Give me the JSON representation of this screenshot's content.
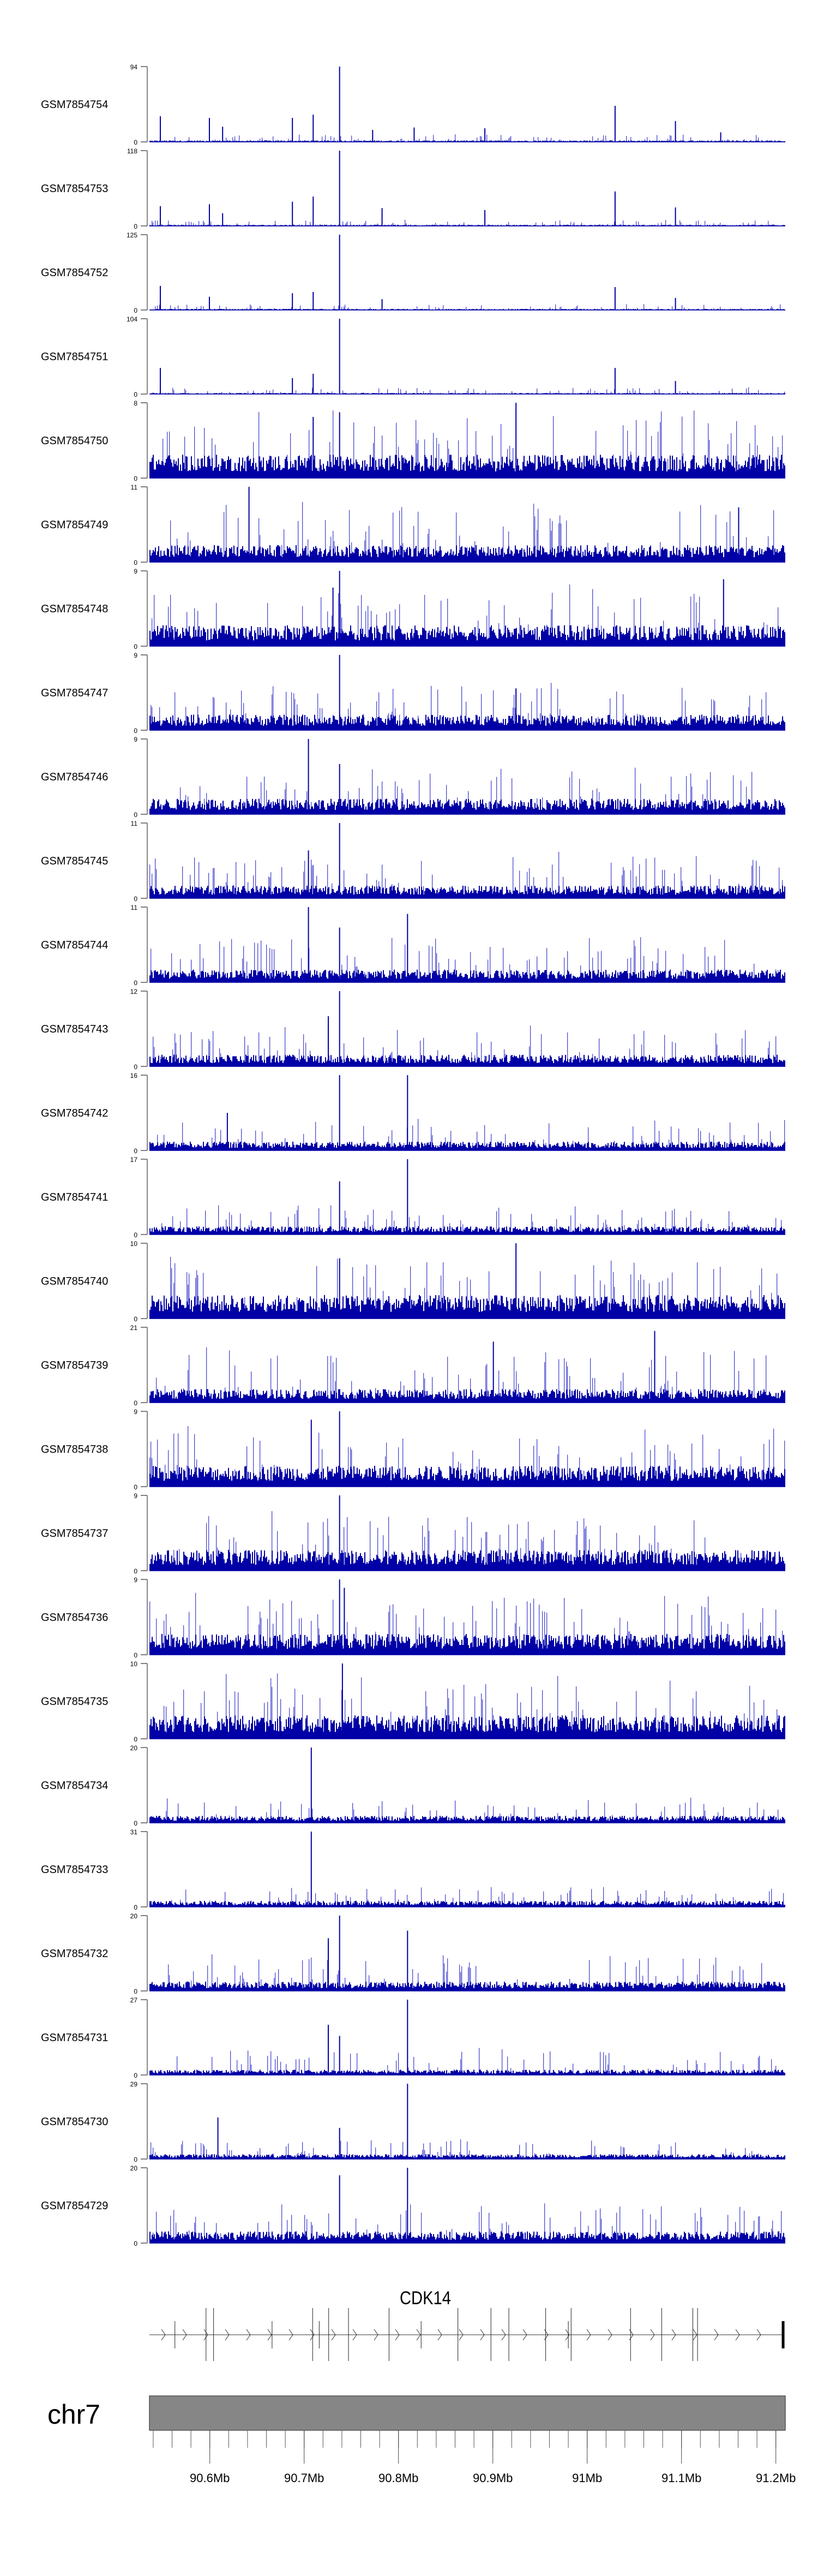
{
  "chart_data": {
    "type": "bar",
    "title": "",
    "xlim_mb": [
      90.536,
      91.21
    ],
    "bar_color": "#0000a6",
    "x_axis": {
      "chromosome": "chr7",
      "tick_labels": [
        "90.6Mb",
        "90.7Mb",
        "90.8Mb",
        "90.9Mb",
        "91Mb",
        "91.1Mb",
        "91.2Mb"
      ],
      "tick_values_mb": [
        90.6,
        90.7,
        90.8,
        90.9,
        91.0,
        91.1,
        91.2
      ],
      "minor_tick_step_mb": 0.02
    },
    "gene": {
      "name": "CDK14",
      "strand": "+",
      "exons_mb": [
        {
          "pos": 90.563,
          "tall": false
        },
        {
          "pos": 90.596,
          "tall": true
        },
        {
          "pos": 90.604,
          "tall": true
        },
        {
          "pos": 90.666,
          "tall": false
        },
        {
          "pos": 90.709,
          "tall": true
        },
        {
          "pos": 90.716,
          "tall": false
        },
        {
          "pos": 90.726,
          "tall": true
        },
        {
          "pos": 90.747,
          "tall": true
        },
        {
          "pos": 90.79,
          "tall": true
        },
        {
          "pos": 90.824,
          "tall": false
        },
        {
          "pos": 90.863,
          "tall": true
        },
        {
          "pos": 90.898,
          "tall": true
        },
        {
          "pos": 90.917,
          "tall": true
        },
        {
          "pos": 90.956,
          "tall": true
        },
        {
          "pos": 90.98,
          "tall": false
        },
        {
          "pos": 90.983,
          "tall": true
        },
        {
          "pos": 91.046,
          "tall": true
        },
        {
          "pos": 91.079,
          "tall": true
        },
        {
          "pos": 91.112,
          "tall": true
        },
        {
          "pos": 91.117,
          "tall": true
        }
      ],
      "end_mb": 91.208
    },
    "tracks": [
      {
        "name": "GSM7854754",
        "ymin": "0",
        "ymax": 94,
        "baseline": 1.5,
        "spike": 8,
        "peaks": [
          [
            90.737,
            94
          ],
          [
            91.029,
            45
          ],
          [
            90.709,
            34
          ],
          [
            90.547,
            32
          ],
          [
            90.687,
            30
          ],
          [
            90.599,
            30
          ],
          [
            91.093,
            26
          ],
          [
            90.613,
            19
          ],
          [
            90.816,
            18
          ],
          [
            90.891,
            17
          ],
          [
            91.141,
            12
          ],
          [
            90.772,
            15
          ]
        ]
      },
      {
        "name": "GSM7854753",
        "ymin": "0",
        "ymax": 118,
        "baseline": 1.5,
        "spike": 8,
        "peaks": [
          [
            90.737,
            118
          ],
          [
            91.029,
            54
          ],
          [
            90.709,
            46
          ],
          [
            90.687,
            38
          ],
          [
            90.599,
            34
          ],
          [
            90.547,
            31
          ],
          [
            91.093,
            29
          ],
          [
            90.782,
            28
          ],
          [
            90.891,
            25
          ],
          [
            90.613,
            20
          ]
        ]
      },
      {
        "name": "GSM7854752",
        "ymin": "0",
        "ymax": 125,
        "baseline": 1.5,
        "spike": 8,
        "peaks": [
          [
            90.737,
            125
          ],
          [
            90.547,
            40
          ],
          [
            91.029,
            38
          ],
          [
            90.709,
            30
          ],
          [
            90.687,
            28
          ],
          [
            90.599,
            22
          ],
          [
            91.093,
            20
          ],
          [
            90.782,
            18
          ]
        ]
      },
      {
        "name": "GSM7854751",
        "ymin": "0",
        "ymax": 104,
        "baseline": 1.2,
        "spike": 8,
        "peaks": [
          [
            90.737,
            104
          ],
          [
            90.547,
            36
          ],
          [
            91.029,
            36
          ],
          [
            90.709,
            28
          ],
          [
            90.687,
            22
          ],
          [
            91.093,
            18
          ]
        ]
      },
      {
        "name": "GSM7854750",
        "ymin": "0",
        "ymax": 8,
        "baseline": 2,
        "spike": 5,
        "peaks": [
          [
            90.924,
            8
          ],
          [
            90.737,
            7
          ],
          [
            90.709,
            6.5
          ]
        ]
      },
      {
        "name": "GSM7854749",
        "ymin": "0",
        "ymax": 11,
        "baseline": 2,
        "spike": 7,
        "peaks": [
          [
            90.641,
            11
          ],
          [
            91.16,
            8
          ]
        ]
      },
      {
        "name": "GSM7854748",
        "ymin": "0",
        "ymax": 9,
        "baseline": 2,
        "spike": 5,
        "peaks": [
          [
            90.737,
            9
          ],
          [
            91.144,
            8
          ],
          [
            90.73,
            7
          ]
        ]
      },
      {
        "name": "GSM7854747",
        "ymin": "0",
        "ymax": 9,
        "baseline": 1.5,
        "spike": 4,
        "peaks": [
          [
            90.737,
            9
          ],
          [
            90.924,
            5
          ]
        ]
      },
      {
        "name": "GSM7854746",
        "ymin": "0",
        "ymax": 9,
        "baseline": 1.5,
        "spike": 4,
        "peaks": [
          [
            90.704,
            9
          ],
          [
            90.737,
            6
          ]
        ]
      },
      {
        "name": "GSM7854745",
        "ymin": "0",
        "ymax": 11,
        "baseline": 1.5,
        "spike": 5,
        "peaks": [
          [
            90.737,
            11
          ],
          [
            90.704,
            7
          ]
        ]
      },
      {
        "name": "GSM7854744",
        "ymin": "0",
        "ymax": 11,
        "baseline": 1.5,
        "spike": 5,
        "peaks": [
          [
            90.704,
            11
          ],
          [
            90.809,
            10
          ],
          [
            90.737,
            8
          ]
        ]
      },
      {
        "name": "GSM7854743",
        "ymin": "0",
        "ymax": 12,
        "baseline": 1.5,
        "spike": 5,
        "peaks": [
          [
            90.737,
            12
          ],
          [
            90.725,
            8
          ]
        ]
      },
      {
        "name": "GSM7854742",
        "ymin": "0",
        "ymax": 16,
        "baseline": 1.5,
        "spike": 5,
        "peaks": [
          [
            90.737,
            16
          ],
          [
            90.809,
            16
          ],
          [
            90.618,
            8
          ]
        ]
      },
      {
        "name": "GSM7854741",
        "ymin": "0",
        "ymax": 17,
        "baseline": 1.5,
        "spike": 5,
        "peaks": [
          [
            90.809,
            17
          ],
          [
            90.737,
            12
          ]
        ]
      },
      {
        "name": "GSM7854740",
        "ymin": "0",
        "ymax": 10,
        "baseline": 2.5,
        "spike": 6,
        "peaks": [
          [
            90.924,
            10
          ],
          [
            90.737,
            8
          ]
        ]
      },
      {
        "name": "GSM7854739",
        "ymin": "0",
        "ymax": 21,
        "baseline": 3,
        "spike": 12,
        "peaks": [
          [
            91.071,
            20
          ],
          [
            90.9,
            17
          ]
        ]
      },
      {
        "name": "GSM7854738",
        "ymin": "0",
        "ymax": 9,
        "baseline": 2,
        "spike": 5,
        "peaks": [
          [
            90.737,
            9
          ],
          [
            90.707,
            8
          ]
        ]
      },
      {
        "name": "GSM7854737",
        "ymin": "0",
        "ymax": 9,
        "baseline": 2,
        "spike": 5,
        "peaks": [
          [
            90.737,
            9
          ]
        ]
      },
      {
        "name": "GSM7854736",
        "ymin": "0",
        "ymax": 9,
        "baseline": 2,
        "spike": 5,
        "peaks": [
          [
            90.737,
            9
          ],
          [
            90.742,
            8
          ]
        ]
      },
      {
        "name": "GSM7854735",
        "ymin": "0",
        "ymax": 10,
        "baseline": 2.5,
        "spike": 6,
        "peaks": [
          [
            90.74,
            10
          ]
        ]
      },
      {
        "name": "GSM7854734",
        "ymin": "0",
        "ymax": 20,
        "baseline": 1.5,
        "spike": 5,
        "peaks": [
          [
            90.707,
            20
          ]
        ]
      },
      {
        "name": "GSM7854733",
        "ymin": "0",
        "ymax": 31,
        "baseline": 2,
        "spike": 6,
        "peaks": [
          [
            90.707,
            31
          ]
        ]
      },
      {
        "name": "GSM7854732",
        "ymin": "0",
        "ymax": 20,
        "baseline": 2,
        "spike": 8,
        "peaks": [
          [
            90.737,
            20
          ],
          [
            90.809,
            16
          ],
          [
            90.725,
            14
          ]
        ]
      },
      {
        "name": "GSM7854731",
        "ymin": "0",
        "ymax": 27,
        "baseline": 1.5,
        "spike": 8,
        "peaks": [
          [
            90.809,
            27
          ],
          [
            90.725,
            18
          ],
          [
            90.737,
            14
          ]
        ]
      },
      {
        "name": "GSM7854730",
        "ymin": "0",
        "ymax": 29,
        "baseline": 1.5,
        "spike": 6,
        "peaks": [
          [
            90.809,
            29
          ],
          [
            90.608,
            16
          ],
          [
            90.737,
            12
          ]
        ]
      },
      {
        "name": "GSM7854729",
        "ymin": "0",
        "ymax": 20,
        "baseline": 2.5,
        "spike": 8,
        "peaks": [
          [
            90.809,
            20
          ],
          [
            90.737,
            18
          ]
        ]
      }
    ]
  }
}
